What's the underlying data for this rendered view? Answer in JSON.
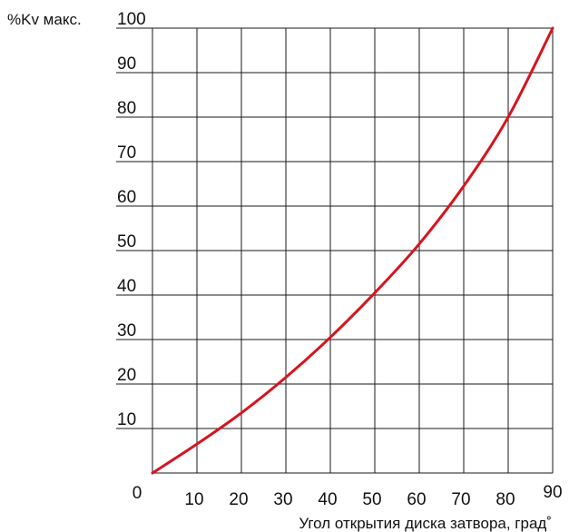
{
  "chart_data": {
    "type": "line",
    "title": "",
    "ylabel": "%Kv макс.",
    "xlabel": "Угол открытия диска затвора, град˚",
    "origin_label": "0",
    "x_ticks": [
      "10",
      "20",
      "30",
      "40",
      "50",
      "60",
      "70",
      "80",
      "90"
    ],
    "y_ticks": [
      "10",
      "20",
      "30",
      "40",
      "50",
      "60",
      "70",
      "80",
      "90",
      "100"
    ],
    "xlim": [
      0,
      90
    ],
    "ylim": [
      0,
      100
    ],
    "grid": true,
    "line_color": "#d7141e",
    "series": [
      {
        "x": [
          0,
          10,
          20,
          30,
          40,
          50,
          60,
          70,
          80,
          90
        ],
        "values": [
          0,
          6.5,
          13.5,
          21.5,
          30.5,
          40.5,
          51.5,
          64.5,
          80,
          100
        ]
      }
    ]
  }
}
